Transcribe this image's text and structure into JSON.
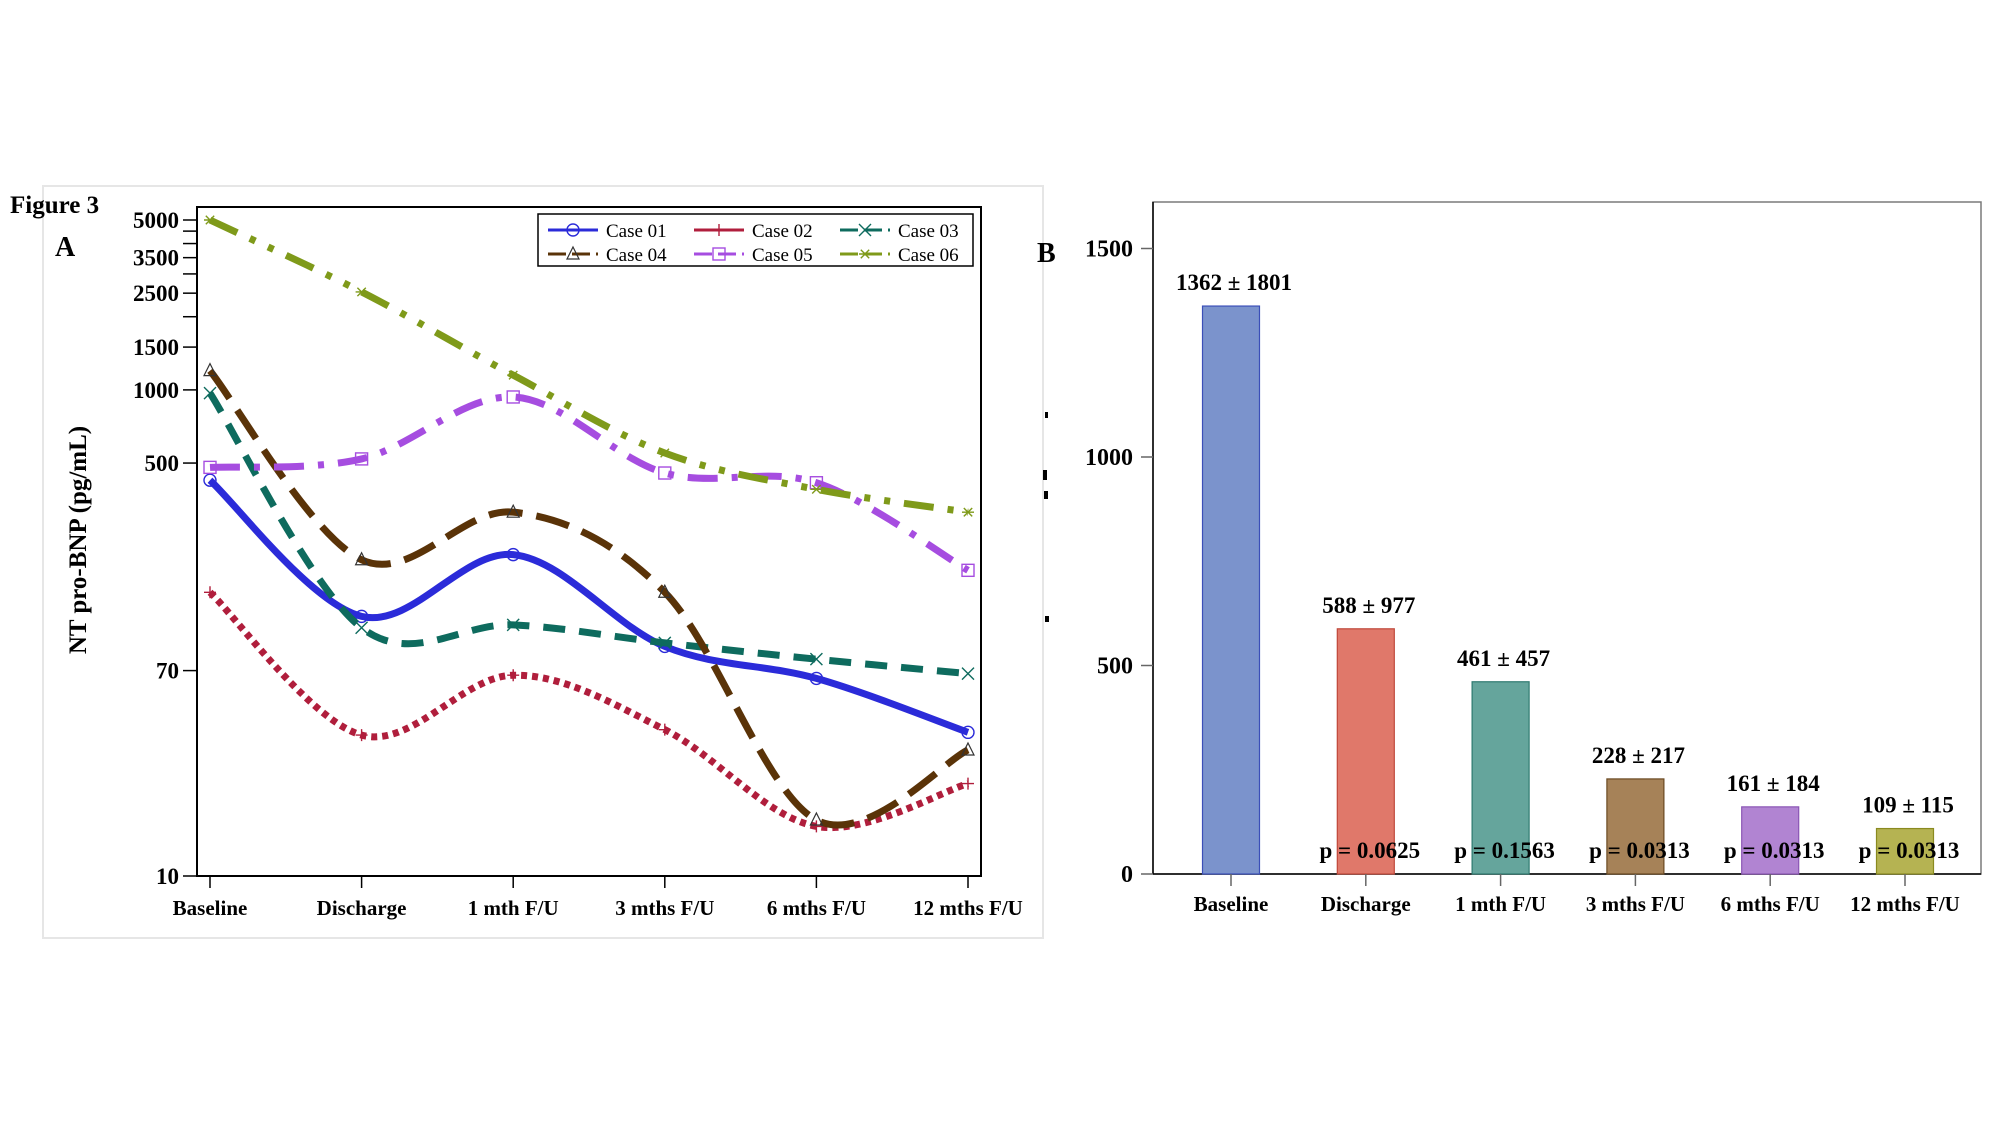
{
  "figure_label": "Figure 3",
  "chart_data": [
    {
      "panel": "A",
      "type": "line",
      "title": "",
      "xlabel": "",
      "ylabel": "NT pro-BNP (pg/mL)",
      "yscale": "log",
      "ylim": [
        10,
        5000
      ],
      "ytick_labels": [
        "5000",
        "3500",
        "2500",
        "1500",
        "1000",
        "500",
        "70",
        "10"
      ],
      "ytick_values": [
        5000,
        3500,
        2500,
        1500,
        1000,
        500,
        70,
        10
      ],
      "yminor_ticks": [
        4500,
        4000,
        3000,
        2000
      ],
      "categories": [
        "Baseline",
        "Discharge",
        "1 mth F/U",
        "3 mths F/U",
        "6 mths F/U",
        "12 mths F/U"
      ],
      "legend_position": "top-right",
      "grid": false,
      "series": [
        {
          "name": "Case 01",
          "color": "#2b2bd9",
          "style": "solid",
          "marker": "circle",
          "values": [
            425,
            117,
            210,
            88,
            65,
            39
          ]
        },
        {
          "name": "Case 02",
          "color": "#b01e3c",
          "style": "dotted",
          "marker": "plus",
          "values": [
            147,
            38,
            67,
            40,
            16,
            24
          ]
        },
        {
          "name": "Case 03",
          "color": "#0e6b5e",
          "style": "dashed",
          "marker": "x",
          "values": [
            970,
            105,
            108,
            91,
            78,
            68
          ]
        },
        {
          "name": "Case 04",
          "color": "#5a3308",
          "style": "longdash",
          "marker": "triangle",
          "values": [
            1200,
            200,
            314,
            147,
            17,
            33
          ]
        },
        {
          "name": "Case 05",
          "color": "#a64de0",
          "style": "dashdot",
          "marker": "square",
          "values": [
            480,
            520,
            935,
            455,
            415,
            181
          ]
        },
        {
          "name": "Case 06",
          "color": "#7f9a1a",
          "style": "dashdotdot",
          "marker": "star",
          "values": [
            5000,
            2530,
            1150,
            550,
            390,
            314
          ]
        }
      ]
    },
    {
      "panel": "B",
      "type": "bar",
      "title": "",
      "xlabel": "",
      "ylabel": "",
      "ylim": [
        0,
        1600
      ],
      "ytick_labels": [
        "0",
        "500",
        "1000",
        "1500"
      ],
      "ytick_values": [
        0,
        500,
        1000,
        1500
      ],
      "categories": [
        "Baseline",
        "Discharge",
        "1 mth F/U",
        "3 mths F/U",
        "6 mths F/U",
        "12 mths F/U"
      ],
      "values": [
        1362,
        588,
        461,
        228,
        161,
        109
      ],
      "sd": [
        1801,
        977,
        457,
        217,
        184,
        115
      ],
      "data_labels": [
        "1362 ± 1801",
        "588 ± 977",
        "461 ± 457",
        "228 ± 217",
        "161 ± 184",
        "109 ± 115"
      ],
      "p_values": [
        "",
        "p = 0.0625",
        "p = 0.1563",
        "p = 0.0313",
        "p = 0.0313",
        "p = 0.0313"
      ],
      "colors": [
        "#7b93cc",
        "#e0786a",
        "#65a59c",
        "#a68258",
        "#b184d2",
        "#b5b352"
      ],
      "edge_colors": [
        "#3b4fb8",
        "#c0483a",
        "#2e7a70",
        "#6b4a22",
        "#8a55b5",
        "#8a8a20"
      ],
      "grid": false
    }
  ]
}
